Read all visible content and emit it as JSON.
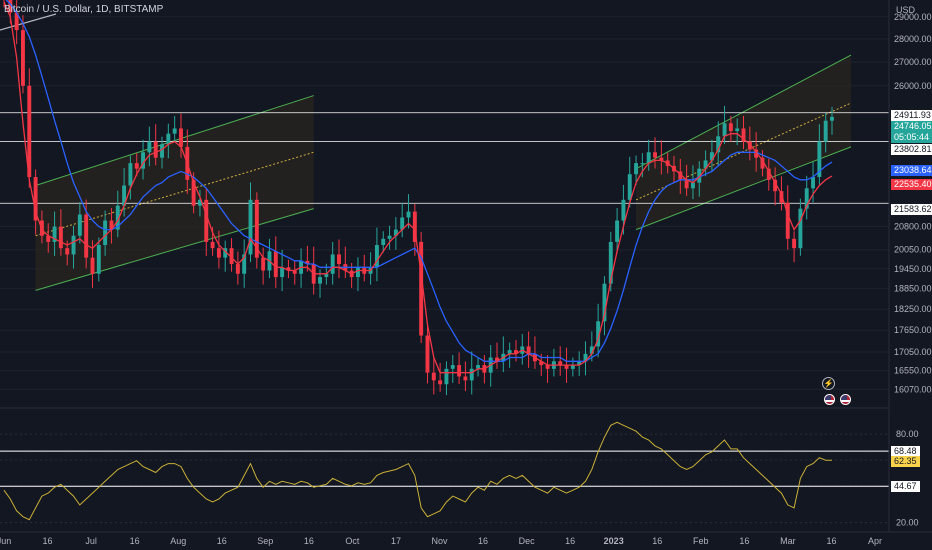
{
  "header": {
    "title": "Bitcoin / U.S. Dollar, 1D, BITSTAMP",
    "currency": "USD"
  },
  "price_tags": {
    "h_line_1": "24911.93",
    "last_price": "24746.05",
    "countdown": "05:05:44",
    "h_line_2": "23802.81",
    "ma_blue": "23038.64",
    "ma_red": "22535.40",
    "h_line_3": "21583.62",
    "rsi_upper": "68.48",
    "rsi_value": "62.35",
    "rsi_lower": "44.67"
  },
  "icons": [
    "lightning-icon",
    "us-flag-icon",
    "us-flag-icon"
  ],
  "colors": {
    "background": "#131722",
    "up": "#26a69a",
    "down": "#f23645",
    "ma_fast": "#f23645",
    "ma_slow": "#2962ff",
    "rsi": "#c9b037",
    "channel_line": "#4caf50",
    "channel_fill": "#2a2520",
    "level_line": "#ffffff"
  },
  "chart_data": [
    {
      "type": "candlestick",
      "symbol": "BTCUSD",
      "interval": "1D",
      "y_scale": "log",
      "ylim": [
        15800,
        29600
      ],
      "y_ticks": [
        29000,
        28000,
        27000,
        26000,
        24911.93,
        23802.81,
        23038.64,
        22535.4,
        21583.62,
        20800,
        20050,
        19450,
        18850,
        18250,
        17650,
        17050,
        16550,
        16070
      ],
      "x_ticks": [
        "Jun",
        "16",
        "Jul",
        "16",
        "Aug",
        "16",
        "Sep",
        "16",
        "Oct",
        "17",
        "Nov",
        "16",
        "Dec",
        "16",
        "2023",
        "16",
        "Feb",
        "16",
        "Mar",
        "16",
        "Apr"
      ],
      "horizontal_levels": [
        24911.93,
        23802.81,
        21583.62
      ],
      "series": [
        {
          "name": "close",
          "values": [
            29800,
            29200,
            28400,
            26000,
            22500,
            21000,
            20500,
            20300,
            20800,
            20100,
            19900,
            20500,
            21200,
            19800,
            19300,
            20200,
            21000,
            20700,
            21500,
            22200,
            23000,
            22800,
            23400,
            23800,
            23200,
            23700,
            24100,
            24300,
            23600,
            22400,
            21500,
            21700,
            20300,
            20100,
            19800,
            20100,
            19600,
            19300,
            19900,
            21700,
            19800,
            19400,
            20000,
            19200,
            19500,
            19400,
            19300,
            19700,
            19600,
            19000,
            19200,
            19300,
            19900,
            19600,
            19400,
            19200,
            19500,
            19300,
            19500,
            20200,
            20400,
            20500,
            20700,
            21100,
            21300,
            20300,
            17500,
            16500,
            16300,
            16200,
            16600,
            16700,
            16400,
            16300,
            16600,
            16700,
            16500,
            16900,
            16800,
            17000,
            17100,
            17000,
            17200,
            17000,
            16800,
            16700,
            16600,
            16800,
            16700,
            16600,
            16700,
            16800,
            17000,
            17200,
            17900,
            19000,
            20300,
            21000,
            21700,
            22600,
            23000,
            23000,
            23400,
            23200,
            23100,
            22900,
            22700,
            22400,
            22100,
            22300,
            22800,
            23100,
            23400,
            24000,
            24500,
            24200,
            24300,
            23800,
            23500,
            23200,
            22800,
            22400,
            22000,
            21600,
            20400,
            20100,
            21400,
            22100,
            22500,
            23800,
            24600,
            24750
          ]
        },
        {
          "name": "MA fast",
          "values": [
            29700,
            29000,
            27200,
            24500,
            22400,
            21300,
            20700,
            20500,
            20400,
            20300,
            20200,
            20300,
            20400,
            20200,
            20100,
            20300,
            20500,
            20700,
            21000,
            21500,
            22100,
            22600,
            23000,
            23300,
            23400,
            23500,
            23700,
            23800,
            23600,
            23000,
            22300,
            21800,
            21200,
            20600,
            20200,
            20000,
            19800,
            19600,
            19800,
            20400,
            20100,
            19800,
            19700,
            19500,
            19500,
            19400,
            19400,
            19500,
            19500,
            19300,
            19300,
            19300,
            19500,
            19500,
            19400,
            19300,
            19400,
            19400,
            19400,
            19700,
            20000,
            20300,
            20500,
            20700,
            20900,
            20700,
            19300,
            17800,
            16900,
            16500,
            16500,
            16500,
            16500,
            16500,
            16500,
            16600,
            16600,
            16700,
            16800,
            16900,
            17000,
            17000,
            17100,
            17000,
            16900,
            16800,
            16700,
            16700,
            16700,
            16700,
            16700,
            16700,
            16800,
            17000,
            17400,
            18100,
            19100,
            20000,
            20800,
            21600,
            22300,
            22700,
            23000,
            23100,
            23100,
            23000,
            22800,
            22600,
            22400,
            22300,
            22500,
            22800,
            23100,
            23500,
            24000,
            24100,
            24100,
            23900,
            23700,
            23400,
            23100,
            22700,
            22300,
            21900,
            21200,
            20700,
            21000,
            21500,
            21900,
            22200,
            22400,
            22535.4
          ]
        },
        {
          "name": "MA slow",
          "values": [
            29900,
            29600,
            29200,
            28700,
            28100,
            27300,
            26400,
            25500,
            24600,
            23800,
            23000,
            22300,
            21800,
            21300,
            21000,
            20800,
            20700,
            20700,
            20800,
            21000,
            21200,
            21500,
            21800,
            22000,
            22200,
            22300,
            22500,
            22600,
            22700,
            22600,
            22500,
            22300,
            22100,
            21800,
            21500,
            21200,
            20900,
            20700,
            20500,
            20400,
            20300,
            20200,
            20100,
            20000,
            19900,
            19800,
            19700,
            19700,
            19600,
            19600,
            19500,
            19500,
            19500,
            19500,
            19500,
            19500,
            19500,
            19500,
            19500,
            19500,
            19600,
            19700,
            19800,
            19900,
            20000,
            20100,
            19800,
            19300,
            18800,
            18300,
            17900,
            17600,
            17300,
            17100,
            17000,
            16900,
            16800,
            16800,
            16800,
            16800,
            16900,
            16900,
            16900,
            17000,
            17000,
            16900,
            16900,
            16900,
            16900,
            16800,
            16800,
            16800,
            16800,
            16900,
            17000,
            17300,
            17700,
            18200,
            18800,
            19500,
            20200,
            20800,
            21300,
            21700,
            22000,
            22200,
            22300,
            22400,
            22400,
            22400,
            22500,
            22600,
            22700,
            22900,
            23100,
            23300,
            23400,
            23400,
            23400,
            23400,
            23300,
            23200,
            23100,
            22900,
            22700,
            22500,
            22400,
            22400,
            22500,
            22700,
            22900,
            23038.64
          ]
        }
      ]
    },
    {
      "type": "line",
      "name": "RSI",
      "ylim": [
        15,
        95
      ],
      "y_ticks": [
        80.0,
        68.48,
        62.35,
        44.67,
        20.0
      ],
      "levels": [
        68.48,
        44.67
      ],
      "values": [
        42,
        36,
        28,
        24,
        22,
        30,
        38,
        40,
        44,
        46,
        42,
        38,
        32,
        36,
        40,
        44,
        48,
        52,
        56,
        58,
        60,
        62,
        58,
        56,
        54,
        58,
        60,
        60,
        58,
        50,
        44,
        40,
        36,
        34,
        36,
        40,
        42,
        44,
        52,
        60,
        50,
        44,
        48,
        46,
        48,
        47,
        46,
        48,
        47,
        44,
        45,
        46,
        50,
        48,
        46,
        45,
        47,
        46,
        47,
        52,
        54,
        55,
        56,
        58,
        60,
        52,
        30,
        24,
        26,
        28,
        34,
        38,
        36,
        34,
        40,
        44,
        42,
        48,
        46,
        50,
        52,
        50,
        52,
        48,
        44,
        42,
        40,
        44,
        42,
        40,
        42,
        44,
        48,
        56,
        68,
        78,
        86,
        88,
        86,
        84,
        82,
        78,
        76,
        72,
        70,
        66,
        62,
        58,
        56,
        58,
        62,
        66,
        68,
        72,
        76,
        70,
        70,
        64,
        60,
        56,
        52,
        48,
        44,
        40,
        32,
        30,
        50,
        58,
        60,
        64,
        62.35,
        62.35
      ]
    }
  ]
}
